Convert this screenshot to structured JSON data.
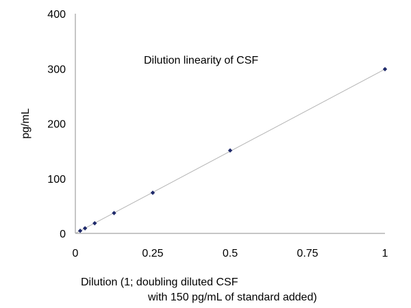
{
  "chart_data": {
    "type": "scatter",
    "title": "Dilution linearity of CSF",
    "xlabel_lines": [
      "Dilution (1; doubling diluted CSF",
      "with 150 pg/mL of standard added)"
    ],
    "ylabel": "pg/mL",
    "xlim": [
      0,
      1
    ],
    "ylim": [
      0,
      400
    ],
    "x_ticks": [
      0,
      0.25,
      0.5,
      0.75,
      1
    ],
    "x_tick_labels": [
      "0",
      "0.25",
      "0.5",
      "0.75",
      "1"
    ],
    "y_ticks": [
      0,
      100,
      200,
      300,
      400
    ],
    "y_tick_labels": [
      "0",
      "100",
      "200",
      "300",
      "400"
    ],
    "grid": false,
    "legend": "none",
    "series": [
      {
        "x": [
          0.015625,
          0.03125,
          0.0625,
          0.125,
          0.25,
          0.5,
          1
        ],
        "y": [
          4.7,
          9.3,
          18.5,
          37,
          74,
          151,
          299
        ]
      }
    ],
    "trendline": {
      "x": [
        0,
        1
      ],
      "y": [
        0,
        299
      ]
    },
    "colors": {
      "marker": "#1f2a6b",
      "trendline": "#b3b3b3",
      "axis": "#8c8c8c"
    }
  }
}
